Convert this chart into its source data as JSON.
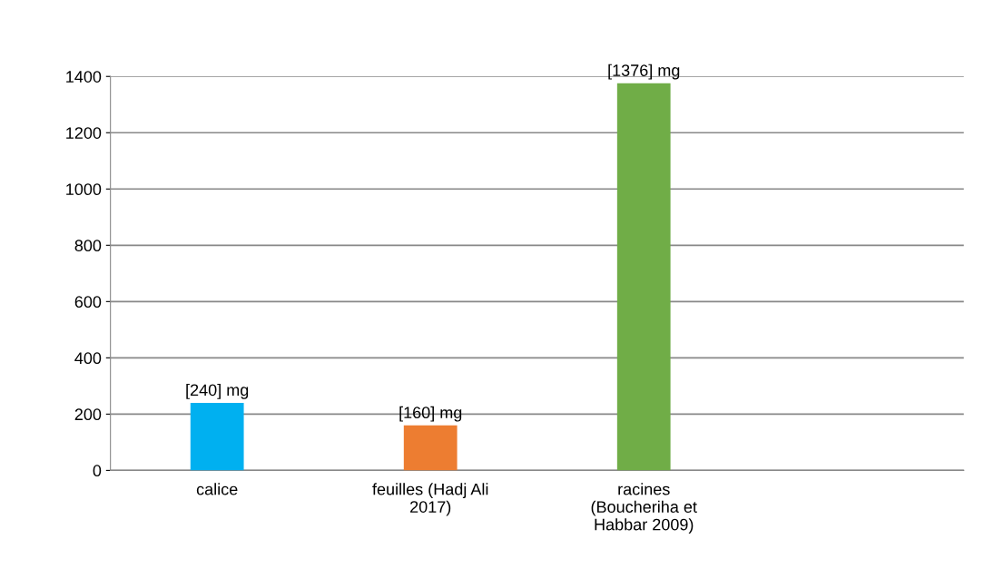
{
  "chart_data": {
    "type": "bar",
    "categories": [
      "calice",
      "feuilles (Hadj Ali\n2017)",
      "racines\n(Boucheriha et\nHabbar 2009)",
      null
    ],
    "values": [
      240,
      160,
      1376,
      null
    ],
    "colors": [
      "#00b0f0",
      "#ed7d31",
      "#70ad47",
      "#808080"
    ],
    "value_labels": [
      "[240] mg",
      "[160] mg",
      "[1376] mg",
      null
    ],
    "ylim": [
      0,
      1400
    ],
    "yticks": [
      0,
      200,
      400,
      600,
      800,
      1000,
      1200,
      1400
    ],
    "grid": "y"
  }
}
